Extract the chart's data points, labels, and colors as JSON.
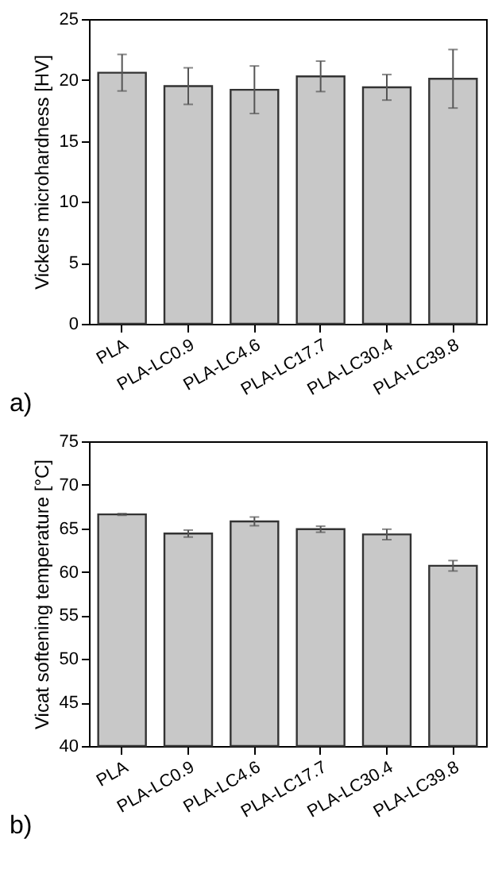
{
  "chart_data": [
    {
      "type": "bar",
      "categories": [
        "PLA",
        "PLA-LC0.9",
        "PLA-LC4.6",
        "PLA-LC17.7",
        "PLA-LC30.4",
        "PLA-LC39.8"
      ],
      "ylabel": "Vickers microhardness [HV]",
      "series": [
        {
          "color": "#c8c8c8",
          "values": [
            20.6,
            19.5,
            19.2,
            20.3,
            19.4,
            20.1
          ],
          "errors": [
            1.5,
            1.5,
            1.95,
            1.25,
            1.05,
            2.4
          ]
        }
      ],
      "ylim": [
        0,
        25
      ],
      "yticks": [
        0,
        5,
        10,
        15,
        20,
        25
      ],
      "grid": false,
      "annotations": [
        "a)"
      ]
    },
    {
      "type": "bar",
      "categories": [
        "PLA",
        "PLA-LC0.9",
        "PLA-LC4.6",
        "PLA-LC17.7",
        "PLA-LC30.4",
        "PLA-LC39.8"
      ],
      "ylabel": "Vicat softening temperature [°C]",
      "series": [
        {
          "color": "#c8c8c8",
          "values": [
            66.6,
            64.4,
            65.8,
            64.9,
            64.3,
            60.7
          ],
          "errors": [
            0.1,
            0.4,
            0.5,
            0.35,
            0.6,
            0.6
          ]
        }
      ],
      "ylim": [
        40,
        75
      ],
      "yticks": [
        40,
        45,
        50,
        55,
        60,
        65,
        70,
        75
      ],
      "grid": false,
      "annotations": [
        "b)"
      ]
    }
  ]
}
